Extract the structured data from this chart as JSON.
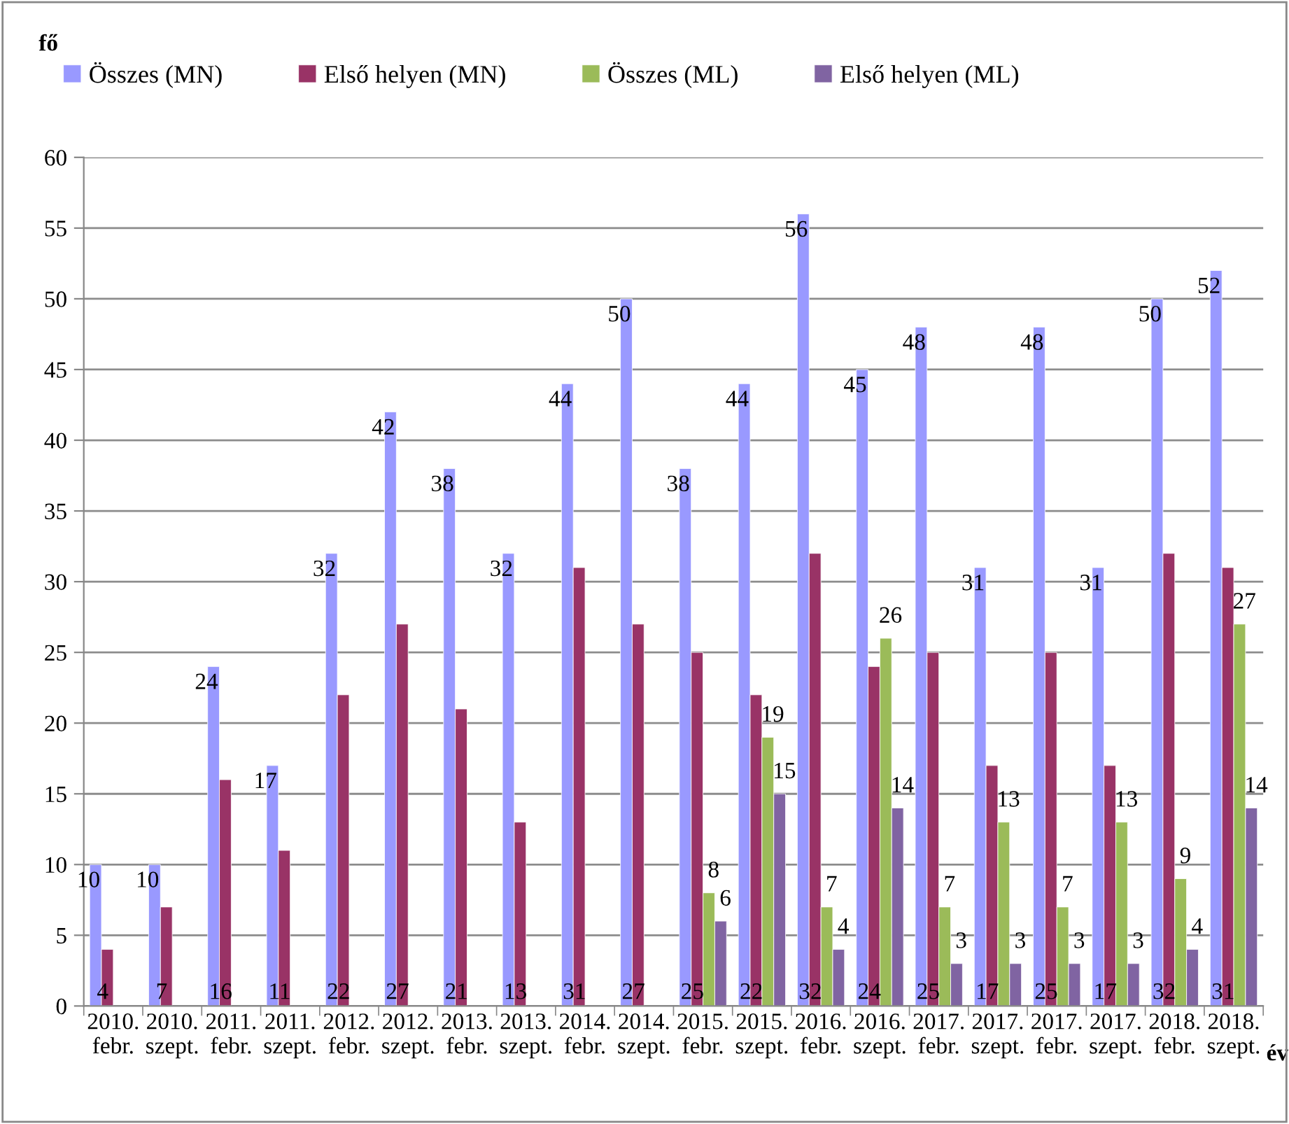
{
  "chart_data": {
    "type": "bar",
    "ylabel": "fő",
    "xlabel": "év",
    "categories": [
      "2010.\nfebr.",
      "2010.\nszept.",
      "2011.\nfebr.",
      "2011.\nszept.",
      "2012.\nfebr.",
      "2012.\nszept.",
      "2013.\nfebr.",
      "2013.\nszept.",
      "2014.\nfebr.",
      "2014.\nszept.",
      "2015.\nfebr.",
      "2015.\nszept.",
      "2016.\nfebr.",
      "2016.\nszept.",
      "2017.\nfebr.",
      "2017.\nszept.",
      "2017.\nfebr.",
      "2017.\nszept.",
      "2018.\nfebr.",
      "2018.\nszept."
    ],
    "series": [
      {
        "name": "Összes (MN)",
        "color": "#9999ff",
        "values": [
          10,
          10,
          24,
          17,
          32,
          42,
          38,
          32,
          44,
          50,
          38,
          44,
          56,
          45,
          48,
          31,
          48,
          31,
          50,
          52
        ]
      },
      {
        "name": "Első helyen (MN)",
        "color": "#993366",
        "values": [
          4,
          7,
          16,
          11,
          22,
          27,
          21,
          13,
          31,
          27,
          25,
          22,
          32,
          24,
          25,
          17,
          25,
          17,
          32,
          31
        ]
      },
      {
        "name": "Összes (ML)",
        "color": "#9bbb59",
        "values": [
          null,
          null,
          null,
          null,
          null,
          null,
          null,
          null,
          null,
          null,
          8,
          19,
          7,
          26,
          7,
          13,
          7,
          13,
          9,
          27
        ]
      },
      {
        "name": "Első helyen (ML)",
        "color": "#8064a2",
        "values": [
          null,
          null,
          null,
          null,
          null,
          null,
          null,
          null,
          null,
          null,
          6,
          15,
          4,
          14,
          3,
          3,
          3,
          3,
          4,
          14
        ]
      }
    ],
    "ylim": [
      0,
      60
    ],
    "yticks": [
      0,
      5,
      10,
      15,
      20,
      25,
      30,
      35,
      40,
      45,
      50,
      55,
      60
    ],
    "grid": "y",
    "legend": "top",
    "data_labels": true
  }
}
